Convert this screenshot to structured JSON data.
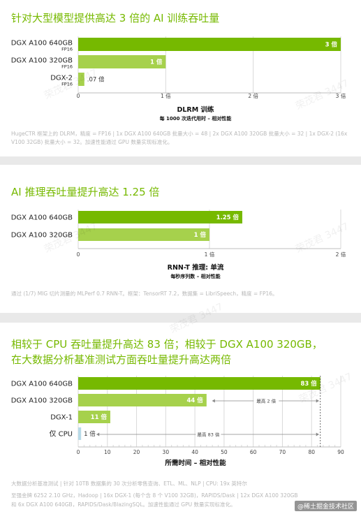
{
  "watermark": "荣茂君 3447",
  "credit": "@稀土掘金技术社区",
  "colors": {
    "dark": "#76b900",
    "light": "#a6d14c",
    "pale": "#b8dbe8",
    "grid": "#d9d9d9"
  },
  "sections": [
    {
      "title": "针对大型模型提供高达 3 倍的 AI 训练吞吐量",
      "note": "HugeCTR 框架上的 DLRM，精度 = FP16 | 1x DGX A100 640GB 批量大小 = 48 | 2x DGX A100 320GB 批量大小 = 32 | 1x DGX-2 (16x V100 32GB) 批量大小 = 32。加速性能通过 GPU 数量实现标准化。"
    },
    {
      "title": "AI 推理吞吐量提升高达 1.25 倍",
      "note": "通过 (1/7) MIG 切片测量的 MLPerf 0.7 RNN-T。框架：TensorRT 7.2，数据集 = LibriSpeech，精度 = FP16。"
    },
    {
      "title_lines": [
        "相较于 CPU 吞吐量提升高达 83 倍；相较于 DGX A100 320GB，",
        "在大数据分析基准测试方面吞吐量提升高达两倍"
      ],
      "note_lines": [
        "大数据分析基准测试 | 针对 10TB 数据集的 30 次分析零售查询、ETL、ML、NLP | CPU: 19x 英特尔",
        "至强金牌 6252 2.10 GHz，Hadoop | 16x DGX-1 (每个含 8 个 V100 32GB)，RAPIDS/Dask | 12x DGX A100 320GB",
        "和 6x DGX A100 640GB，RAPIDS/Dask/BlazingSQL。加速性能通过 GPU 数量实现标准化。"
      ]
    }
  ],
  "chart_data": [
    {
      "type": "bar",
      "orientation": "horizontal",
      "title": "",
      "xlabel": "DLRM 训练",
      "xlabel_sub": "每 1000 次迭代用时 – 相对性能",
      "xlim": [
        0,
        3
      ],
      "ticks": [
        "0",
        "1 倍",
        "2 倍",
        "3 倍"
      ],
      "categories": [
        {
          "label": "DGX A100 640GB",
          "sub": "FP16",
          "value": 3,
          "value_label": "3 倍",
          "tone": "dark"
        },
        {
          "label": "DGX A100 320GB",
          "sub": "FP16",
          "value": 1,
          "value_label": "1 倍",
          "tone": "light"
        },
        {
          "label": "DGX-2",
          "sub": "FP16",
          "value": 0.07,
          "value_label": ".07 倍",
          "tone": "light"
        }
      ]
    },
    {
      "type": "bar",
      "orientation": "horizontal",
      "title": "",
      "xlabel": "RNN-T 推理: 单流",
      "xlabel_sub": "每秒序列数 – 相对性能",
      "xlim": [
        0,
        2
      ],
      "ticks": [
        "0",
        "1 倍",
        "2 倍"
      ],
      "categories": [
        {
          "label": "DGX A100 640GB",
          "value": 1.25,
          "value_label": "1.25 倍",
          "tone": "dark"
        },
        {
          "label": "DGX A100 320GB",
          "value": 1,
          "value_label": "1 倍",
          "tone": "light"
        }
      ]
    },
    {
      "type": "bar",
      "orientation": "horizontal",
      "title": "",
      "xlabel": "所需时间 – 相对性能",
      "xlim": [
        0,
        90
      ],
      "ticks": [
        "0",
        "10",
        "20",
        "30",
        "40",
        "50",
        "60",
        "70",
        "80",
        "90"
      ],
      "categories": [
        {
          "label": "DGX A100 640GB",
          "value": 83,
          "value_label": "83 倍",
          "tone": "dark"
        },
        {
          "label": "DGX A100 320GB",
          "value": 44,
          "value_label": "44 倍",
          "tone": "light",
          "annotation": "最高 2 倍"
        },
        {
          "label": "DGX-1",
          "value": 11,
          "value_label": "11 倍",
          "tone": "light"
        },
        {
          "label": "仅 CPU",
          "value": 1,
          "value_label": "1 倍",
          "tone": "pale",
          "annotation": "最高 83 倍"
        }
      ],
      "reference_line": 83
    }
  ]
}
